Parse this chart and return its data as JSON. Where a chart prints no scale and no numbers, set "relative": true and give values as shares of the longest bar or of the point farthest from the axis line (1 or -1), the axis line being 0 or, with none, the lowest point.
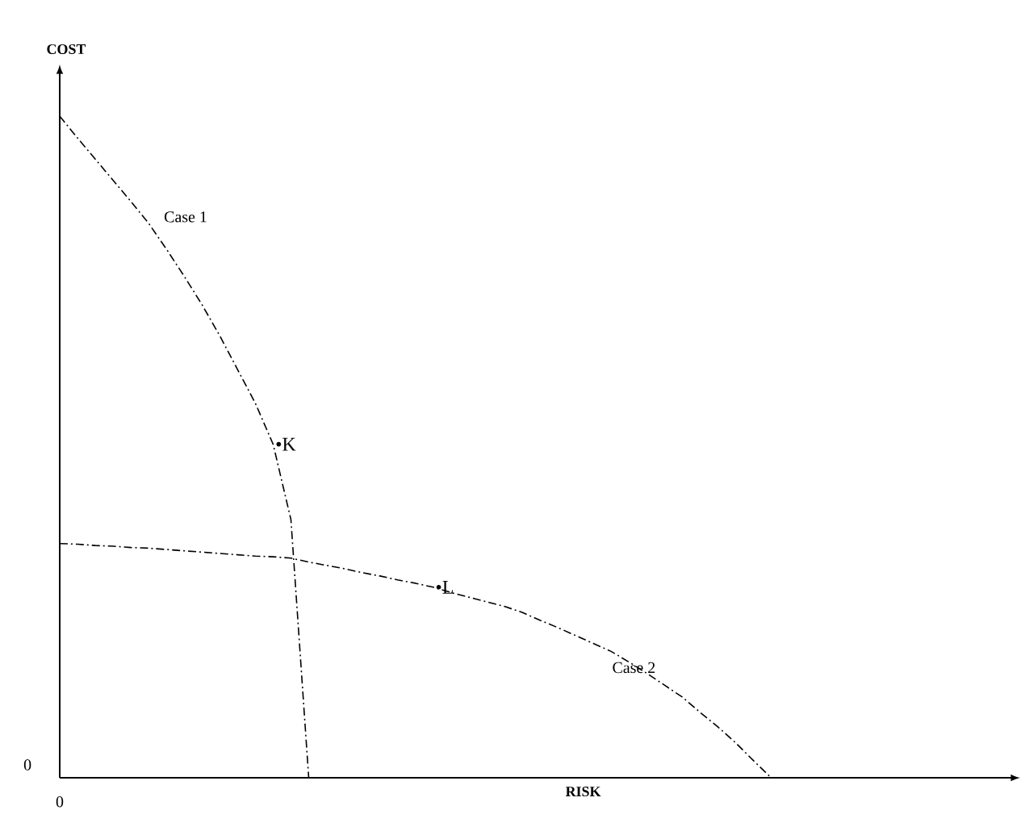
{
  "chart_data": {
    "type": "line",
    "relative": true,
    "xlabel": "RISK",
    "ylabel": "COST",
    "line_style": "dashed",
    "categories": [
      null,
      null,
      null,
      null,
      null,
      null,
      null,
      null,
      null,
      null,
      null,
      null,
      null,
      null,
      null,
      null,
      null,
      null,
      null,
      null,
      null,
      null,
      null,
      null,
      null,
      null,
      null,
      null,
      null,
      null,
      null,
      null,
      null,
      null,
      null,
      null,
      null,
      null,
      null,
      null,
      null
    ],
    "series": [
      {
        "name": "Case 1",
        "color": "#000000",
        "marker": "none",
        "values": [
          1,
          0.967,
          0.935,
          0.903,
          0.871,
          0.838,
          0.799,
          0.758,
          0.715,
          0.668,
          0.617,
          0.566,
          0.504,
          0.39,
          0,
          null,
          null,
          null,
          null,
          null,
          null,
          null,
          null,
          null,
          null,
          null,
          null,
          null,
          null,
          null,
          null,
          null,
          null,
          null,
          null,
          null,
          null,
          null,
          null,
          null,
          null
        ]
      },
      {
        "name": "Case 2",
        "color": "#000000",
        "marker": "none",
        "values": [
          0.354,
          0.353,
          0.351,
          0.35,
          0.348,
          0.347,
          0.345,
          0.343,
          0.341,
          0.339,
          0.337,
          0.335,
          0.334,
          0.332,
          0.326,
          0.321,
          0.316,
          0.31,
          0.305,
          0.299,
          0.294,
          0.288,
          0.28,
          0.273,
          0.266,
          0.259,
          0.25,
          0.238,
          0.227,
          0.215,
          0.203,
          0.191,
          0.175,
          0.158,
          0.14,
          0.122,
          0.099,
          0.077,
          0.053,
          0.026,
          0
        ]
      }
    ],
    "annotations": [
      "•K",
      "•L",
      "0",
      "0"
    ]
  }
}
